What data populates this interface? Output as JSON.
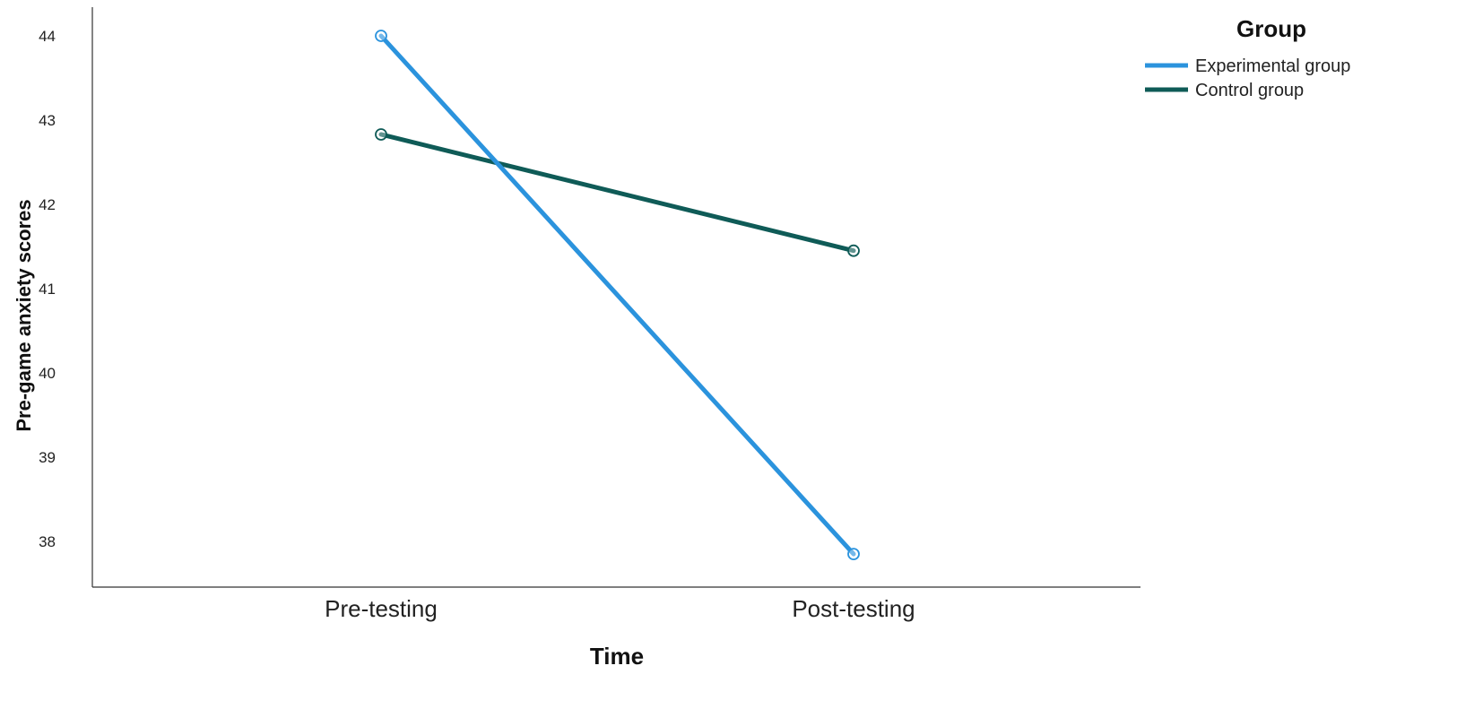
{
  "chart_data": {
    "type": "line",
    "title": "",
    "xlabel": "Time",
    "ylabel": "Pre-game anxiety scores",
    "categories": [
      "Pre-testing",
      "Post-testing"
    ],
    "yticks": [
      38,
      39,
      40,
      41,
      42,
      43,
      44
    ],
    "ylim": [
      37.5,
      44.3
    ],
    "grid": false,
    "legend": {
      "title": "Group",
      "placement": "top-right"
    },
    "series": [
      {
        "name": "Experimental group",
        "values": [
          44.0,
          37.85
        ],
        "color": "#2b93dd",
        "marker": "circle"
      },
      {
        "name": "Control group",
        "values": [
          42.83,
          41.45
        ],
        "color": "#0f5b57",
        "marker": "circle"
      }
    ]
  }
}
